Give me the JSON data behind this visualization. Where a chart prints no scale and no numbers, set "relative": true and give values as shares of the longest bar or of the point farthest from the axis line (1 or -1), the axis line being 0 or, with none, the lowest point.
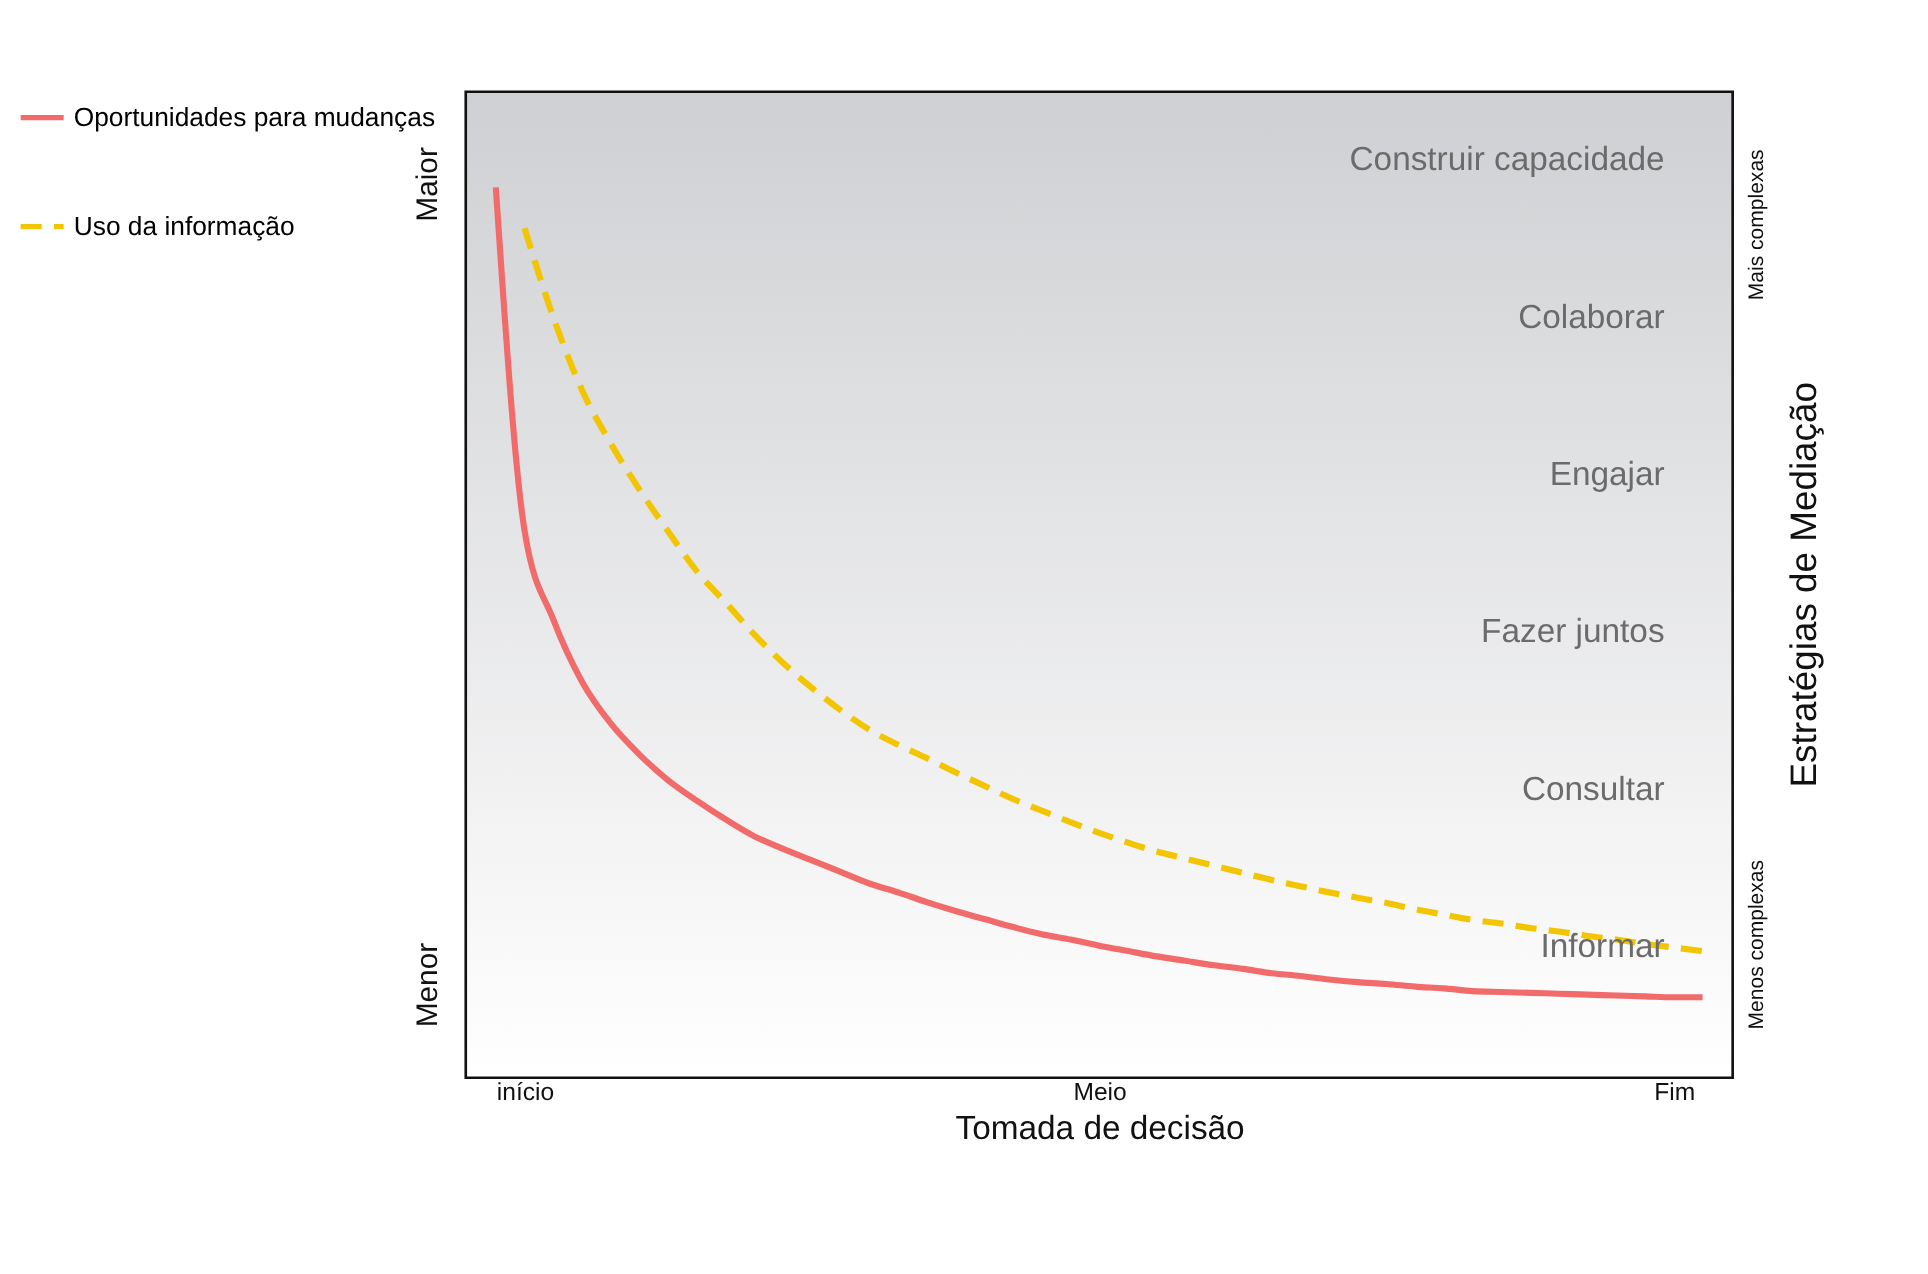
{
  "chart_data": {
    "type": "line",
    "relative": true,
    "xlabel": "Tomada de decisão",
    "y2label": "Estratégias de Mediação",
    "categories": [
      null,
      "início",
      null,
      null,
      null,
      null,
      null,
      null,
      null,
      null,
      null,
      null,
      null,
      null,
      null,
      null,
      null,
      null,
      null,
      null,
      null,
      "Meio",
      null,
      null,
      null,
      null,
      null,
      null,
      null,
      null,
      null,
      null,
      null,
      null,
      null,
      null,
      null,
      null,
      null,
      null,
      null,
      "Fim",
      null
    ],
    "series": [
      {
        "name": "Oportunidades para mudanças",
        "color": "#f26b6b",
        "line_style": "solid",
        "values": [
          1.0,
          0.614,
          0.514,
          0.444,
          0.397,
          0.362,
          0.333,
          0.31,
          0.289,
          0.27,
          0.256,
          0.243,
          0.23,
          0.217,
          0.207,
          0.196,
          0.186,
          0.177,
          0.168,
          0.16,
          0.154,
          0.147,
          0.141,
          0.135,
          0.13,
          0.125,
          0.121,
          0.116,
          0.113,
          0.109,
          0.106,
          0.104,
          0.101,
          0.099,
          0.096,
          0.095,
          0.094,
          0.093,
          0.092,
          0.091,
          0.09,
          0.089,
          0.089
        ]
      },
      {
        "name": "Uso da informação",
        "color": "#f2c500",
        "line_style": "dashed",
        "values": [
          null,
          0.954,
          0.854,
          0.772,
          0.712,
          0.66,
          0.613,
          0.568,
          0.533,
          0.497,
          0.465,
          0.437,
          0.412,
          0.39,
          0.373,
          0.358,
          0.342,
          0.327,
          0.312,
          0.299,
          0.286,
          0.274,
          0.263,
          0.253,
          0.245,
          0.237,
          0.229,
          0.221,
          0.214,
          0.207,
          0.201,
          0.195,
          0.188,
          0.182,
          0.176,
          0.172,
          0.167,
          0.163,
          0.158,
          0.154,
          0.149,
          0.145,
          0.141
        ]
      }
    ],
    "annotations": [
      "Construir capacidade",
      "Colaborar",
      "Engajar",
      "Fazer juntos",
      "Consultar",
      "Informar",
      "Maior",
      "Menor",
      "Mais complexas",
      "Menos complexas"
    ],
    "legend": "left"
  }
}
